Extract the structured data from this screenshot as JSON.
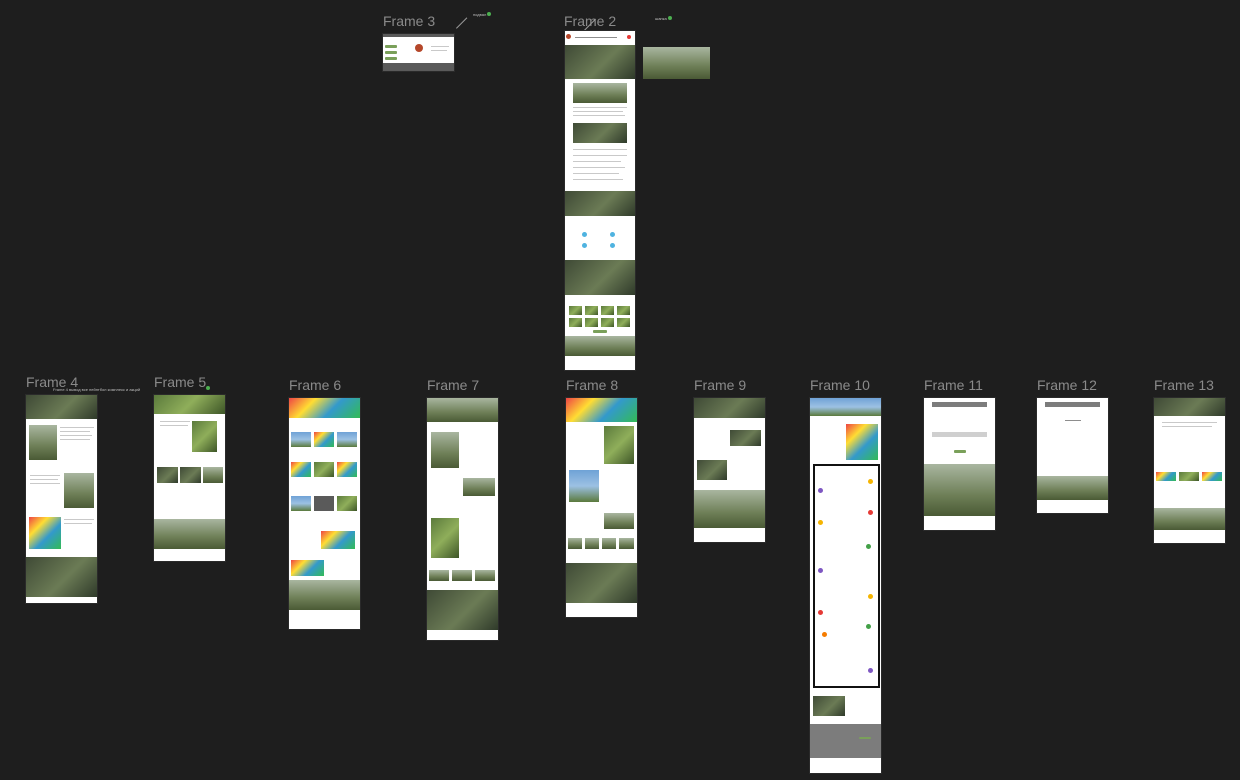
{
  "canvas": {
    "background": "#1e1e1e",
    "frames": [
      {
        "id": "frame-3",
        "label": "Frame 3"
      },
      {
        "id": "frame-2",
        "label": "Frame 2"
      },
      {
        "id": "frame-4",
        "label": "Frame 4"
      },
      {
        "id": "frame-5",
        "label": "Frame 5"
      },
      {
        "id": "frame-6",
        "label": "Frame 6"
      },
      {
        "id": "frame-7",
        "label": "Frame 7"
      },
      {
        "id": "frame-8",
        "label": "Frame 8"
      },
      {
        "id": "frame-9",
        "label": "Frame 9"
      },
      {
        "id": "frame-10",
        "label": "Frame 10"
      },
      {
        "id": "frame-11",
        "label": "Frame 11"
      },
      {
        "id": "frame-12",
        "label": "Frame 12"
      },
      {
        "id": "frame-13",
        "label": "Frame 13"
      }
    ],
    "annotations": {
      "frame3_note": "подвал",
      "frame2_note": "шапка",
      "frame4_note": "Frame 4 вывод все пейнтбол комплекс и акций"
    },
    "colors": {
      "accent": "#7aa05a",
      "note_dot": "#4caf50",
      "label": "#8a8a8a"
    }
  }
}
